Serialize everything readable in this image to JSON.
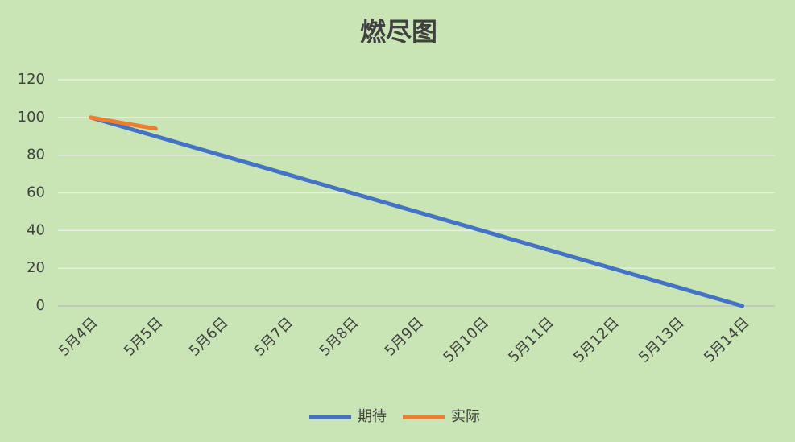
{
  "chart_data": {
    "type": "line",
    "title": "燃尽图",
    "categories": [
      "5月4日",
      "5月5日",
      "5月6日",
      "5月7日",
      "5月8日",
      "5月9日",
      "5月10日",
      "5月11日",
      "5月12日",
      "5月13日",
      "5月14日"
    ],
    "series": [
      {
        "name": "期待",
        "color": "#4472c4",
        "values": [
          100,
          90,
          80,
          70,
          60,
          50,
          40,
          30,
          20,
          10,
          0
        ]
      },
      {
        "name": "实际",
        "color": "#ed7d31",
        "values": [
          100,
          94,
          null,
          null,
          null,
          null,
          null,
          null,
          null,
          null,
          null
        ]
      }
    ],
    "ylim": [
      0,
      120
    ],
    "yticks": [
      0,
      20,
      40,
      60,
      80,
      100,
      120
    ],
    "grid": true,
    "legend": "bottom"
  }
}
